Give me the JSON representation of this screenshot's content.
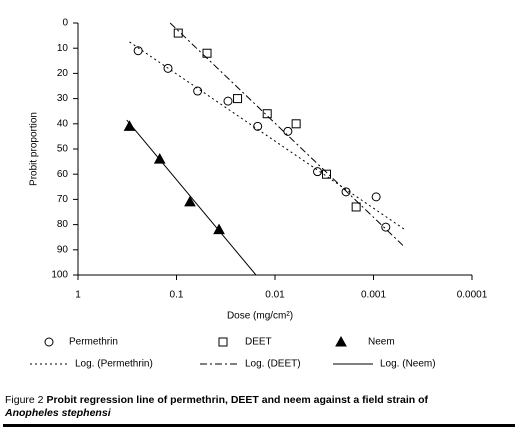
{
  "chart_data": {
    "type": "scatter",
    "xlabel": "Dose (mg/cm²)",
    "ylabel": "Probit proportion",
    "xscale": "log",
    "xlim": [
      1,
      0.0001
    ],
    "xticks": [
      1,
      0.1,
      0.01,
      0.001,
      0.0001
    ],
    "ylim": [
      0,
      100
    ],
    "y_inverted": true,
    "yticks": [
      0,
      10,
      20,
      30,
      40,
      50,
      60,
      70,
      80,
      90,
      100
    ],
    "series": [
      {
        "name": "Permethrin",
        "marker": "circle",
        "color": "#000000",
        "x": [
          0.245,
          0.122,
          0.061,
          0.03,
          0.015,
          0.0074,
          0.0037,
          0.0019,
          0.00094,
          0.00075
        ],
        "values": [
          11,
          18,
          27,
          31,
          41,
          43,
          59,
          67,
          69,
          81
        ]
      },
      {
        "name": "DEET",
        "marker": "square",
        "color": "#000000",
        "x": [
          0.096,
          0.049,
          0.024,
          0.012,
          0.0061,
          0.003,
          0.0015
        ],
        "values": [
          4,
          12,
          30,
          36,
          40,
          60,
          73
        ]
      },
      {
        "name": "Neem",
        "marker": "triangle",
        "color": "#000000",
        "x": [
          0.3,
          0.148,
          0.073,
          0.037
        ],
        "values": [
          41,
          54,
          71,
          82
        ]
      },
      {
        "name": "Log. (Permethrin)",
        "line": "dotted",
        "color": "#000000",
        "x": [
          0.3,
          0.00048
        ],
        "values": [
          7.5,
          82
        ]
      },
      {
        "name": "Log. (DEET)",
        "line": "dashdot",
        "color": "#000000",
        "x": [
          0.116,
          0.00048
        ],
        "values": [
          0,
          89
        ]
      },
      {
        "name": "Log. (Neem)",
        "line": "solid",
        "color": "#000000",
        "x": [
          0.32,
          0.0156
        ],
        "values": [
          38.5,
          100
        ]
      }
    ]
  },
  "caption": {
    "label": "Figure 2",
    "text": "Probit regression line of permethrin, DEET and neem against a field strain of",
    "species": "Anopheles stephensi"
  }
}
